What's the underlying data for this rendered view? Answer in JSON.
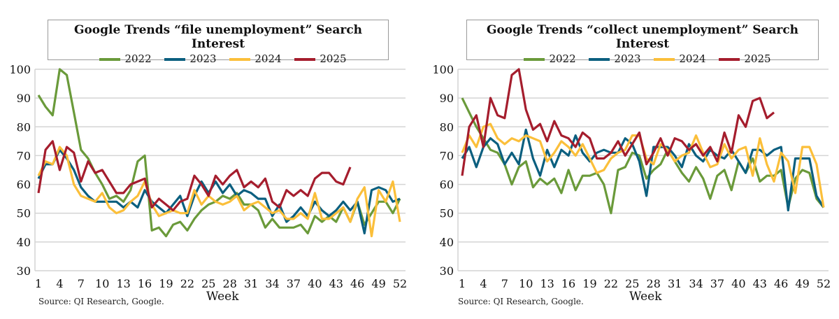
{
  "chart_data": [
    {
      "type": "line",
      "title": "Google Trends “file unemployment” Search Interest",
      "xlabel": "Week",
      "ylabel": "",
      "ylim": [
        30,
        100
      ],
      "xlim": [
        1,
        52
      ],
      "yticks": [
        30,
        40,
        50,
        60,
        70,
        80,
        90,
        100
      ],
      "xticks": [
        1,
        4,
        7,
        10,
        13,
        16,
        19,
        22,
        25,
        28,
        31,
        34,
        37,
        40,
        43,
        46,
        49,
        52
      ],
      "grid": "horizontal",
      "legend": "top",
      "source": "Source: QI Research, Google.",
      "series": [
        {
          "name": "2022",
          "color": "#6a9a3a",
          "values": [
            91,
            87,
            84,
            100,
            98,
            85,
            72,
            69,
            64,
            60,
            55,
            56,
            54,
            58,
            68,
            70,
            44,
            45,
            42,
            46,
            47,
            44,
            48,
            51,
            53,
            54,
            56,
            55,
            57,
            53,
            53,
            51,
            45,
            48,
            45,
            45,
            45,
            46,
            43,
            49,
            47,
            49,
            47,
            52,
            47,
            54,
            46,
            50,
            54,
            54,
            50,
            55
          ]
        },
        {
          "name": "2023",
          "color": "#0b5f7f",
          "values": [
            62,
            67,
            67,
            72,
            69,
            65,
            59,
            56,
            54,
            54,
            54,
            54,
            52,
            54,
            52,
            58,
            54,
            52,
            50,
            53,
            56,
            49,
            56,
            61,
            57,
            61,
            57,
            60,
            56,
            58,
            57,
            55,
            55,
            49,
            53,
            47,
            49,
            52,
            49,
            54,
            51,
            49,
            51,
            54,
            51,
            54,
            43,
            58,
            59,
            58,
            54,
            55
          ]
        },
        {
          "name": "2024",
          "color": "#fbbf3a",
          "values": [
            63,
            68,
            67,
            73,
            70,
            60,
            56,
            55,
            54,
            57,
            52,
            50,
            51,
            54,
            56,
            61,
            53,
            49,
            50,
            51,
            50,
            50,
            58,
            53,
            56,
            54,
            53,
            54,
            56,
            51,
            53,
            54,
            52,
            50,
            51,
            48,
            48,
            50,
            48,
            57,
            48,
            48,
            50,
            52,
            47,
            55,
            59,
            42,
            58,
            54,
            61,
            47
          ]
        },
        {
          "name": "2025",
          "color": "#a51d2d",
          "values": [
            57,
            72,
            75,
            65,
            73,
            71,
            61,
            68,
            64,
            65,
            61,
            57,
            57,
            60,
            61,
            62,
            52,
            55,
            53,
            51,
            54,
            55,
            63,
            60,
            56,
            63,
            60,
            63,
            65,
            59,
            61,
            59,
            62,
            54,
            52,
            58,
            56,
            58,
            56,
            62,
            64,
            64,
            61,
            60,
            66
          ]
        }
      ]
    },
    {
      "type": "line",
      "title": "Google Trends “collect unemployment” Search Interest",
      "xlabel": "Week",
      "ylabel": "",
      "ylim": [
        30,
        100
      ],
      "xlim": [
        1,
        52
      ],
      "yticks": [
        30,
        40,
        50,
        60,
        70,
        80,
        90,
        100
      ],
      "xticks": [
        1,
        4,
        7,
        10,
        13,
        16,
        19,
        22,
        25,
        28,
        31,
        34,
        37,
        40,
        43,
        46,
        49,
        52
      ],
      "grid": "horizontal",
      "legend": "top",
      "source": "Source: QI Research, Google.",
      "series": [
        {
          "name": "2022",
          "color": "#6a9a3a",
          "values": [
            90,
            85,
            80,
            76,
            72,
            71,
            67,
            60,
            66,
            68,
            59,
            62,
            60,
            62,
            57,
            65,
            58,
            63,
            63,
            64,
            60,
            50,
            65,
            66,
            71,
            70,
            62,
            65,
            67,
            72,
            68,
            64,
            61,
            66,
            62,
            55,
            63,
            65,
            58,
            68,
            64,
            69,
            61,
            63,
            63,
            65,
            52,
            62,
            65,
            64,
            55,
            52
          ]
        },
        {
          "name": "2023",
          "color": "#0b5f7f",
          "values": [
            69,
            73,
            66,
            73,
            76,
            74,
            67,
            71,
            67,
            79,
            69,
            63,
            72,
            66,
            72,
            70,
            77,
            71,
            68,
            71,
            72,
            71,
            71,
            76,
            74,
            68,
            56,
            73,
            73,
            73,
            70,
            66,
            74,
            70,
            68,
            72,
            70,
            69,
            72,
            68,
            64,
            72,
            72,
            70,
            72,
            73,
            51,
            69,
            69,
            69,
            56,
            52
          ]
        },
        {
          "name": "2024",
          "color": "#fbbf3a",
          "values": [
            71,
            77,
            73,
            80,
            81,
            76,
            74,
            76,
            75,
            77,
            76,
            75,
            68,
            71,
            75,
            73,
            70,
            74,
            69,
            64,
            65,
            69,
            71,
            72,
            77,
            77,
            69,
            67,
            74,
            72,
            68,
            70,
            71,
            77,
            71,
            66,
            67,
            74,
            69,
            72,
            73,
            63,
            76,
            67,
            61,
            71,
            68,
            57,
            73,
            73,
            67,
            52
          ]
        },
        {
          "name": "2025",
          "color": "#a51d2d",
          "values": [
            63,
            80,
            84,
            73,
            90,
            84,
            83,
            98,
            100,
            86,
            79,
            81,
            75,
            82,
            77,
            76,
            73,
            78,
            76,
            69,
            69,
            71,
            75,
            70,
            74,
            78,
            67,
            71,
            76,
            70,
            76,
            75,
            72,
            74,
            70,
            73,
            68,
            78,
            71,
            84,
            80,
            89,
            90,
            83,
            85
          ]
        }
      ]
    }
  ]
}
